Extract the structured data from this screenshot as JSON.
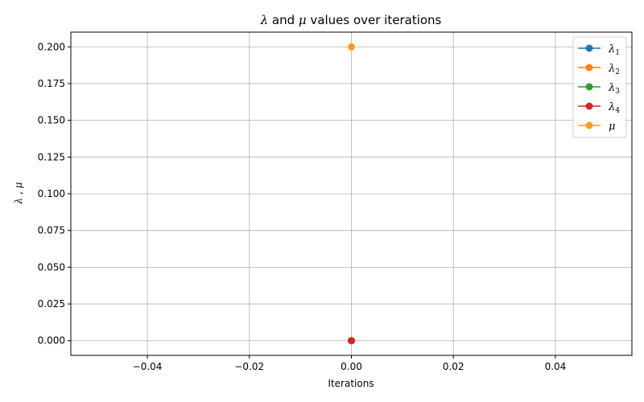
{
  "chart_data": {
    "type": "line",
    "title": {
      "lambda_symbol": "λ",
      "connector": " and ",
      "mu_symbol": "μ",
      "rest": " values over iterations"
    },
    "xlabel": "Iterations",
    "ylabel": {
      "lambda_symbol": "λ",
      "separator": " , ",
      "mu_symbol": "μ"
    },
    "xlim": [
      -0.055,
      0.055
    ],
    "ylim": [
      -0.01,
      0.21
    ],
    "x_ticks": [
      -0.04,
      -0.02,
      0.0,
      0.02,
      0.04
    ],
    "x_tick_labels": [
      "−0.04",
      "−0.02",
      "0.00",
      "0.02",
      "0.04"
    ],
    "y_ticks": [
      0.0,
      0.025,
      0.05,
      0.075,
      0.1,
      0.125,
      0.15,
      0.175,
      0.2
    ],
    "y_tick_labels": [
      "0.000",
      "0.025",
      "0.050",
      "0.075",
      "0.100",
      "0.125",
      "0.150",
      "0.175",
      "0.200"
    ],
    "grid": true,
    "legend_position": "top-right",
    "series": [
      {
        "name": "λ",
        "subscript": "1",
        "color": "#1f77b4",
        "x": [
          0
        ],
        "y": [
          0.0
        ]
      },
      {
        "name": "λ",
        "subscript": "2",
        "color": "#ff7f0e",
        "x": [
          0
        ],
        "y": [
          0.0
        ]
      },
      {
        "name": "λ",
        "subscript": "3",
        "color": "#2ca02c",
        "x": [
          0
        ],
        "y": [
          0.0
        ]
      },
      {
        "name": "λ",
        "subscript": "4",
        "color": "#d62728",
        "x": [
          0
        ],
        "y": [
          0.0
        ]
      },
      {
        "name": "μ",
        "subscript": "",
        "color": "#ff9f1c",
        "x": [
          0
        ],
        "y": [
          0.2
        ]
      }
    ]
  }
}
